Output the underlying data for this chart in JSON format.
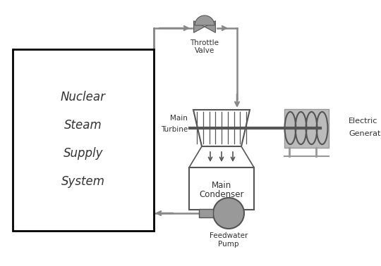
{
  "bg_color": "#ffffff",
  "line_color": "#888888",
  "dark_color": "#555555",
  "box_color": "#aaaaaa",
  "text_color": "#333333",
  "nsss_label": [
    "Nuclear",
    "Steam",
    "Supply",
    "System"
  ],
  "throttle_label": [
    "Throttle",
    "Valve"
  ],
  "turbine_label": [
    "Main",
    "Turbine"
  ],
  "condenser_label": [
    "Main",
    "Condenser"
  ],
  "generator_label": [
    "Electric",
    "Generator"
  ],
  "pump_label": [
    "Feedwater",
    "Pump"
  ],
  "figsize": [
    5.4,
    3.78
  ],
  "dpi": 100
}
